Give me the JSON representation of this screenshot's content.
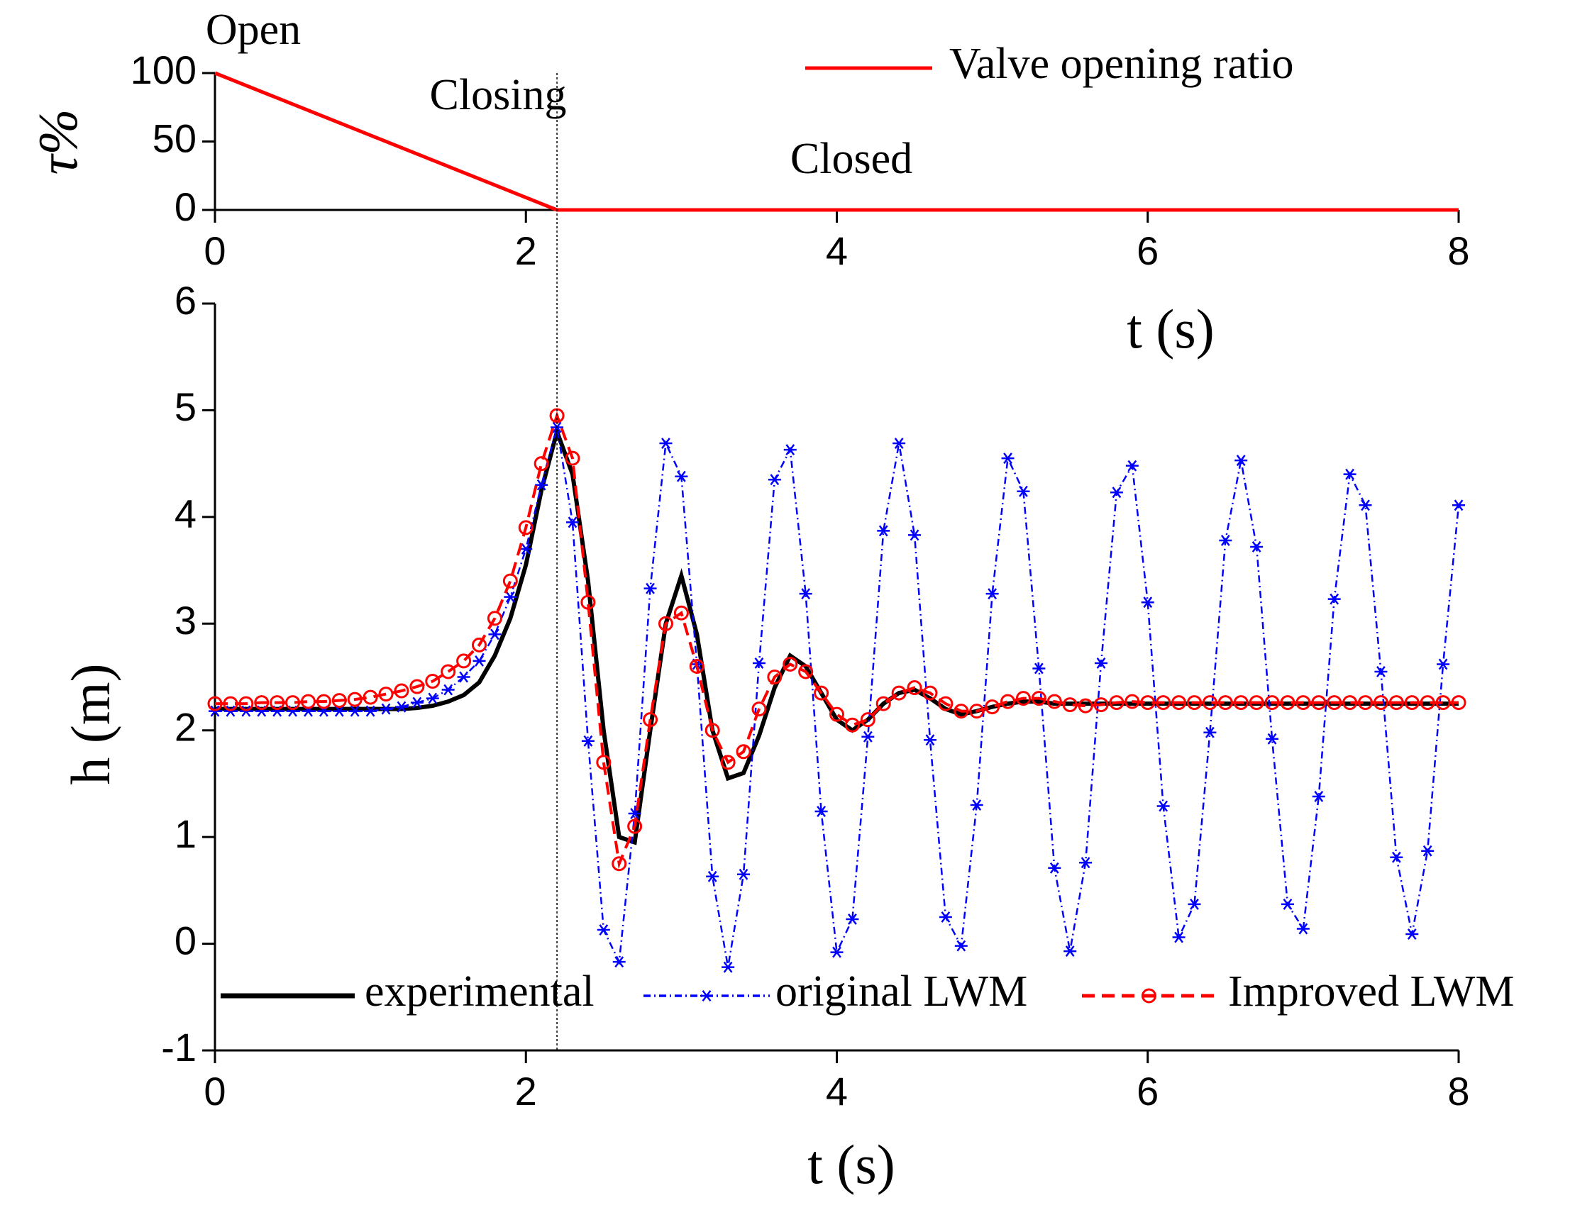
{
  "chart_data": [
    {
      "type": "line",
      "ylabel": "τ%",
      "xlabel": "t (s)",
      "annotations": [
        "Open",
        "Closing",
        "Closed"
      ],
      "x": [
        0,
        2.2,
        8
      ],
      "series": [
        {
          "name": "Valve opening ratio",
          "color": "#ff0000",
          "values": [
            100,
            0,
            0
          ]
        }
      ],
      "xlim": [
        0,
        8
      ],
      "xticks": [
        0,
        2,
        4,
        6,
        8
      ],
      "ylim": [
        0,
        100
      ],
      "yticks": [
        0,
        50,
        100
      ],
      "legend": "upper right"
    },
    {
      "type": "line",
      "ylabel": "h (m)",
      "xlabel": "t (s)",
      "x": [
        0,
        0.1,
        0.2,
        0.3,
        0.4,
        0.5,
        0.6,
        0.7,
        0.8,
        0.9,
        1,
        1.1,
        1.2,
        1.3,
        1.4,
        1.5,
        1.6,
        1.7,
        1.8,
        1.9,
        2,
        2.1,
        2.2,
        2.3,
        2.4,
        2.5,
        2.6,
        2.7,
        2.8,
        2.9,
        3,
        3.1,
        3.2,
        3.3,
        3.4,
        3.5,
        3.6,
        3.7,
        3.8,
        3.9,
        4,
        4.1,
        4.2,
        4.3,
        4.4,
        4.5,
        4.6,
        4.7,
        4.8,
        4.9,
        5,
        5.1,
        5.2,
        5.3,
        5.4,
        5.5,
        5.6,
        5.7,
        5.8,
        5.9,
        6,
        6.1,
        6.2,
        6.3,
        6.4,
        6.5,
        6.6,
        6.7,
        6.8,
        6.9,
        7,
        7.1,
        7.2,
        7.3,
        7.4,
        7.5,
        7.6,
        7.7,
        7.8,
        7.9,
        8
      ],
      "series": [
        {
          "name": "experimental",
          "color": "#000000",
          "style": "solid",
          "marker": "none",
          "values": [
            2.2,
            2.2,
            2.2,
            2.2,
            2.2,
            2.2,
            2.2,
            2.2,
            2.2,
            2.2,
            2.2,
            2.2,
            2.2,
            2.21,
            2.23,
            2.27,
            2.33,
            2.45,
            2.7,
            3.05,
            3.55,
            4.25,
            4.8,
            4.4,
            3.4,
            2.0,
            1.0,
            0.95,
            2.0,
            3.0,
            3.45,
            2.9,
            2.0,
            1.55,
            1.6,
            1.95,
            2.4,
            2.7,
            2.6,
            2.35,
            2.1,
            2.0,
            2.1,
            2.25,
            2.35,
            2.38,
            2.3,
            2.2,
            2.15,
            2.18,
            2.22,
            2.25,
            2.27,
            2.27,
            2.25,
            2.25,
            2.25,
            2.25,
            2.25,
            2.25,
            2.25,
            2.25,
            2.25,
            2.25,
            2.25,
            2.25,
            2.25,
            2.25,
            2.25,
            2.25,
            2.25,
            2.25,
            2.25,
            2.25,
            2.25,
            2.25,
            2.25,
            2.25,
            2.25,
            2.25,
            2.25
          ]
        },
        {
          "name": "original LWM",
          "color": "#0000ff",
          "style": "dashdot",
          "marker": "star",
          "values": [
            2.18,
            2.18,
            2.18,
            2.18,
            2.18,
            2.18,
            2.18,
            2.18,
            2.18,
            2.18,
            2.18,
            2.2,
            2.22,
            2.26,
            2.3,
            2.38,
            2.5,
            2.65,
            2.9,
            3.25,
            3.7,
            4.3,
            4.84,
            3.95,
            1.9,
            0.13,
            -0.17,
            1.22,
            3.33,
            4.69,
            4.38,
            2.62,
            0.63,
            -0.22,
            0.65,
            2.63,
            4.35,
            4.63,
            3.28,
            1.24,
            -0.08,
            0.23,
            1.94,
            3.87,
            4.69,
            3.83,
            1.91,
            0.25,
            -0.02,
            1.3,
            3.28,
            4.55,
            4.24,
            2.58,
            0.71,
            -0.07,
            0.76,
            2.63,
            4.23,
            4.48,
            3.2,
            1.29,
            0.06,
            0.37,
            1.98,
            3.78,
            4.53,
            3.72,
            1.92,
            0.37,
            0.14,
            1.38,
            3.23,
            4.4,
            4.11,
            2.55,
            0.81,
            0.09,
            0.87,
            2.62,
            4.11
          ]
        },
        {
          "name": "Improved LWM",
          "color": "#ff0000",
          "style": "dashed",
          "marker": "circle",
          "values": [
            2.25,
            2.25,
            2.25,
            2.26,
            2.26,
            2.26,
            2.27,
            2.27,
            2.28,
            2.29,
            2.31,
            2.34,
            2.37,
            2.41,
            2.46,
            2.55,
            2.65,
            2.8,
            3.05,
            3.4,
            3.9,
            4.5,
            4.95,
            4.55,
            3.2,
            1.7,
            0.75,
            1.1,
            2.1,
            3.0,
            3.1,
            2.6,
            2.0,
            1.7,
            1.8,
            2.2,
            2.5,
            2.62,
            2.55,
            2.35,
            2.15,
            2.05,
            2.1,
            2.25,
            2.35,
            2.4,
            2.35,
            2.25,
            2.18,
            2.18,
            2.22,
            2.27,
            2.3,
            2.3,
            2.27,
            2.24,
            2.23,
            2.24,
            2.26,
            2.27,
            2.26,
            2.26,
            2.26,
            2.26,
            2.26,
            2.26,
            2.26,
            2.26,
            2.26,
            2.26,
            2.26,
            2.26,
            2.26,
            2.26,
            2.26,
            2.26,
            2.26,
            2.26,
            2.26,
            2.26,
            2.26
          ]
        }
      ],
      "xlim": [
        0,
        8
      ],
      "xticks": [
        0,
        2,
        4,
        6,
        8
      ],
      "ylim": [
        -1,
        6
      ],
      "yticks": [
        -1,
        0,
        1,
        2,
        3,
        4,
        5,
        6
      ],
      "legend": "lower center"
    }
  ]
}
